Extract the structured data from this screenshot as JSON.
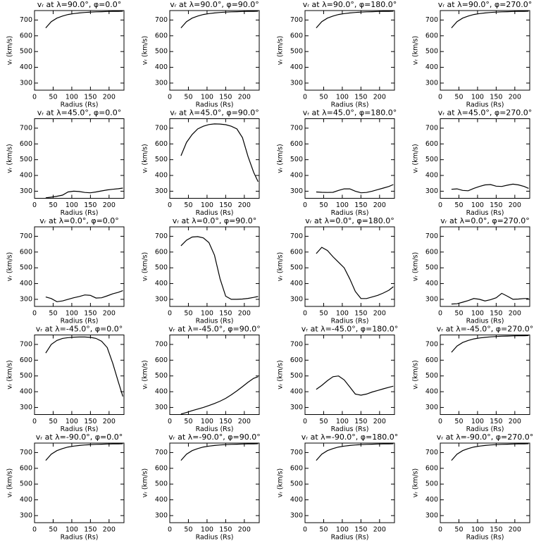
{
  "chart_data": [
    {
      "type": "line",
      "title": "vᵣ at λ=90.0°, φ=0.0°",
      "xlabel": "Radius (Rs)",
      "ylabel": "vᵣ (km/s)",
      "x": [
        30,
        45,
        60,
        75,
        90,
        105,
        120,
        135,
        150,
        165,
        180,
        195,
        210,
        225,
        237
      ],
      "values": [
        650,
        690,
        712,
        725,
        735,
        741,
        745,
        748,
        750,
        752,
        753,
        754,
        755,
        755,
        756
      ],
      "color": "#000000",
      "xlim": [
        0,
        240
      ],
      "ylim": [
        255,
        760
      ],
      "xticks": [
        0,
        50,
        100,
        150,
        200
      ],
      "yticks": [
        300,
        400,
        500,
        600,
        700
      ]
    },
    {
      "type": "line",
      "title": "vᵣ at λ=90.0°, φ=90.0°",
      "xlabel": "Radius (Rs)",
      "ylabel": "vᵣ (km/s)",
      "x": [
        30,
        45,
        60,
        75,
        90,
        105,
        120,
        135,
        150,
        165,
        180,
        195,
        210,
        225,
        237
      ],
      "values": [
        650,
        690,
        712,
        725,
        735,
        741,
        745,
        748,
        750,
        752,
        753,
        754,
        755,
        755,
        756
      ],
      "color": "#000000",
      "xlim": [
        0,
        240
      ],
      "ylim": [
        255,
        760
      ],
      "xticks": [
        0,
        50,
        100,
        150,
        200
      ],
      "yticks": [
        300,
        400,
        500,
        600,
        700
      ]
    },
    {
      "type": "line",
      "title": "vᵣ at λ=90.0°, φ=180.0°",
      "xlabel": "Radius (Rs)",
      "ylabel": "vᵣ (km/s)",
      "x": [
        30,
        45,
        60,
        75,
        90,
        105,
        120,
        135,
        150,
        165,
        180,
        195,
        210,
        225,
        237
      ],
      "values": [
        650,
        690,
        712,
        725,
        735,
        741,
        745,
        748,
        750,
        752,
        753,
        754,
        755,
        755,
        756
      ],
      "color": "#000000",
      "xlim": [
        0,
        240
      ],
      "ylim": [
        255,
        760
      ],
      "xticks": [
        0,
        50,
        100,
        150,
        200
      ],
      "yticks": [
        300,
        400,
        500,
        600,
        700
      ]
    },
    {
      "type": "line",
      "title": "vᵣ at λ=90.0°, φ=270.0°",
      "xlabel": "Radius (Rs)",
      "ylabel": "vᵣ (km/s)",
      "x": [
        30,
        45,
        60,
        75,
        90,
        105,
        120,
        135,
        150,
        165,
        180,
        195,
        210,
        225,
        237
      ],
      "values": [
        650,
        690,
        712,
        725,
        735,
        741,
        745,
        748,
        750,
        752,
        753,
        754,
        755,
        755,
        756
      ],
      "color": "#000000",
      "xlim": [
        0,
        240
      ],
      "ylim": [
        255,
        760
      ],
      "xticks": [
        0,
        50,
        100,
        150,
        200
      ],
      "yticks": [
        300,
        400,
        500,
        600,
        700
      ]
    },
    {
      "type": "line",
      "title": "vᵣ at λ=45.0°, φ=0.0°",
      "xlabel": "Radius (Rs)",
      "ylabel": "vᵣ (km/s)",
      "x": [
        30,
        45,
        60,
        75,
        90,
        105,
        120,
        135,
        150,
        165,
        180,
        195,
        210,
        225,
        237
      ],
      "values": [
        258,
        262,
        268,
        275,
        295,
        300,
        298,
        292,
        290,
        295,
        302,
        308,
        312,
        316,
        320
      ],
      "color": "#000000",
      "xlim": [
        0,
        240
      ],
      "ylim": [
        255,
        760
      ],
      "xticks": [
        0,
        50,
        100,
        150,
        200
      ],
      "yticks": [
        300,
        400,
        500,
        600,
        700
      ]
    },
    {
      "type": "line",
      "title": "vᵣ at λ=45.0°, φ=90.0°",
      "xlabel": "Radius (Rs)",
      "ylabel": "vᵣ (km/s)",
      "x": [
        30,
        45,
        60,
        75,
        90,
        105,
        120,
        135,
        150,
        165,
        180,
        195,
        210,
        225,
        237
      ],
      "values": [
        525,
        610,
        660,
        695,
        712,
        723,
        727,
        726,
        722,
        712,
        695,
        640,
        520,
        420,
        360
      ],
      "color": "#000000",
      "xlim": [
        0,
        240
      ],
      "ylim": [
        255,
        760
      ],
      "xticks": [
        0,
        50,
        100,
        150,
        200
      ],
      "yticks": [
        300,
        400,
        500,
        600,
        700
      ]
    },
    {
      "type": "line",
      "title": "vᵣ at λ=45.0°, φ=180.0°",
      "xlabel": "Radius (Rs)",
      "ylabel": "vᵣ (km/s)",
      "x": [
        30,
        45,
        60,
        75,
        90,
        105,
        120,
        135,
        150,
        165,
        180,
        195,
        210,
        225,
        237
      ],
      "values": [
        295,
        293,
        292,
        293,
        305,
        315,
        315,
        300,
        290,
        292,
        300,
        310,
        320,
        330,
        342
      ],
      "color": "#000000",
      "xlim": [
        0,
        240
      ],
      "ylim": [
        255,
        760
      ],
      "xticks": [
        0,
        50,
        100,
        150,
        200
      ],
      "yticks": [
        300,
        400,
        500,
        600,
        700
      ]
    },
    {
      "type": "line",
      "title": "vᵣ at λ=45.0°, φ=270.0°",
      "xlabel": "Radius (Rs)",
      "ylabel": "vᵣ (km/s)",
      "x": [
        30,
        45,
        60,
        75,
        90,
        105,
        120,
        135,
        150,
        165,
        180,
        195,
        210,
        225,
        237
      ],
      "values": [
        312,
        315,
        305,
        303,
        318,
        330,
        340,
        342,
        332,
        330,
        338,
        345,
        340,
        330,
        318
      ],
      "color": "#000000",
      "xlim": [
        0,
        240
      ],
      "ylim": [
        255,
        760
      ],
      "xticks": [
        0,
        50,
        100,
        150,
        200
      ],
      "yticks": [
        300,
        400,
        500,
        600,
        700
      ]
    },
    {
      "type": "line",
      "title": "vᵣ at λ=0.0°, φ=0.0°",
      "xlabel": "Radius (Rs)",
      "ylabel": "vᵣ (km/s)",
      "x": [
        30,
        45,
        60,
        75,
        90,
        105,
        120,
        135,
        150,
        165,
        180,
        195,
        210,
        225,
        237
      ],
      "values": [
        315,
        305,
        285,
        290,
        300,
        310,
        318,
        328,
        325,
        308,
        310,
        322,
        335,
        345,
        355
      ],
      "color": "#000000",
      "xlim": [
        0,
        240
      ],
      "ylim": [
        255,
        760
      ],
      "xticks": [
        0,
        50,
        100,
        150,
        200
      ],
      "yticks": [
        300,
        400,
        500,
        600,
        700
      ]
    },
    {
      "type": "line",
      "title": "vᵣ at λ=0.0°, φ=90.0°",
      "xlabel": "Radius (Rs)",
      "ylabel": "vᵣ (km/s)",
      "x": [
        30,
        45,
        60,
        75,
        90,
        105,
        120,
        135,
        150,
        165,
        180,
        195,
        210,
        225,
        237
      ],
      "values": [
        640,
        675,
        695,
        698,
        690,
        660,
        580,
        430,
        320,
        300,
        300,
        302,
        306,
        312,
        318
      ],
      "color": "#000000",
      "xlim": [
        0,
        240
      ],
      "ylim": [
        255,
        760
      ],
      "xticks": [
        0,
        50,
        100,
        150,
        200
      ],
      "yticks": [
        300,
        400,
        500,
        600,
        700
      ]
    },
    {
      "type": "line",
      "title": "vᵣ at λ=0.0°, φ=180.0°",
      "xlabel": "Radius (Rs)",
      "ylabel": "vᵣ (km/s)",
      "x": [
        30,
        45,
        60,
        75,
        90,
        105,
        120,
        135,
        150,
        165,
        180,
        195,
        210,
        225,
        237
      ],
      "values": [
        590,
        630,
        610,
        570,
        535,
        500,
        430,
        350,
        305,
        305,
        315,
        325,
        340,
        358,
        380
      ],
      "color": "#000000",
      "xlim": [
        0,
        240
      ],
      "ylim": [
        255,
        760
      ],
      "xticks": [
        0,
        50,
        100,
        150,
        200
      ],
      "yticks": [
        300,
        400,
        500,
        600,
        700
      ]
    },
    {
      "type": "line",
      "title": "vᵣ at λ=0.0°, φ=270.0°",
      "xlabel": "Radius (Rs)",
      "ylabel": "vᵣ (km/s)",
      "x": [
        30,
        45,
        60,
        75,
        90,
        105,
        120,
        135,
        150,
        165,
        180,
        195,
        210,
        225,
        237
      ],
      "values": [
        270,
        272,
        282,
        292,
        305,
        300,
        290,
        298,
        310,
        338,
        320,
        300,
        302,
        305,
        305
      ],
      "color": "#000000",
      "xlim": [
        0,
        240
      ],
      "ylim": [
        255,
        760
      ],
      "xticks": [
        0,
        50,
        100,
        150,
        200
      ],
      "yticks": [
        300,
        400,
        500,
        600,
        700
      ]
    },
    {
      "type": "line",
      "title": "vᵣ at λ=-45.0°, φ=0.0°",
      "xlabel": "Radius (Rs)",
      "ylabel": "vᵣ (km/s)",
      "x": [
        30,
        45,
        60,
        75,
        90,
        105,
        120,
        135,
        150,
        165,
        180,
        195,
        210,
        225,
        237
      ],
      "values": [
        645,
        700,
        725,
        738,
        743,
        746,
        747,
        747,
        745,
        738,
        720,
        680,
        580,
        460,
        370
      ],
      "color": "#000000",
      "xlim": [
        0,
        240
      ],
      "ylim": [
        255,
        760
      ],
      "xticks": [
        0,
        50,
        100,
        150,
        200
      ],
      "yticks": [
        300,
        400,
        500,
        600,
        700
      ]
    },
    {
      "type": "line",
      "title": "vᵣ at λ=-45.0°, φ=90.0°",
      "xlabel": "Radius (Rs)",
      "ylabel": "vᵣ (km/s)",
      "x": [
        30,
        45,
        60,
        75,
        90,
        105,
        120,
        135,
        150,
        165,
        180,
        195,
        210,
        225,
        237
      ],
      "values": [
        258,
        268,
        280,
        290,
        300,
        312,
        325,
        340,
        358,
        380,
        405,
        432,
        460,
        485,
        495
      ],
      "color": "#000000",
      "xlim": [
        0,
        240
      ],
      "ylim": [
        255,
        760
      ],
      "xticks": [
        0,
        50,
        100,
        150,
        200
      ],
      "yticks": [
        300,
        400,
        500,
        600,
        700
      ]
    },
    {
      "type": "line",
      "title": "vᵣ at λ=-45.0°, φ=180.0°",
      "xlabel": "Radius (Rs)",
      "ylabel": "vᵣ (km/s)",
      "x": [
        30,
        45,
        60,
        75,
        90,
        105,
        120,
        135,
        150,
        165,
        180,
        195,
        210,
        225,
        237
      ],
      "values": [
        415,
        440,
        470,
        495,
        500,
        475,
        430,
        385,
        378,
        385,
        398,
        408,
        418,
        428,
        435
      ],
      "color": "#000000",
      "xlim": [
        0,
        240
      ],
      "ylim": [
        255,
        760
      ],
      "xticks": [
        0,
        50,
        100,
        150,
        200
      ],
      "yticks": [
        300,
        400,
        500,
        600,
        700
      ]
    },
    {
      "type": "line",
      "title": "vᵣ at λ=-45.0°, φ=270.0°",
      "xlabel": "Radius (Rs)",
      "ylabel": "vᵣ (km/s)",
      "x": [
        30,
        45,
        60,
        75,
        90,
        105,
        120,
        135,
        150,
        165,
        180,
        195,
        210,
        225,
        237
      ],
      "values": [
        650,
        690,
        712,
        725,
        735,
        741,
        745,
        748,
        750,
        752,
        753,
        754,
        755,
        755,
        756
      ],
      "color": "#000000",
      "xlim": [
        0,
        240
      ],
      "ylim": [
        255,
        760
      ],
      "xticks": [
        0,
        50,
        100,
        150,
        200
      ],
      "yticks": [
        300,
        400,
        500,
        600,
        700
      ]
    },
    {
      "type": "line",
      "title": "vᵣ at λ=-90.0°, φ=0.0°",
      "xlabel": "Radius (Rs)",
      "ylabel": "vᵣ (km/s)",
      "x": [
        30,
        45,
        60,
        75,
        90,
        105,
        120,
        135,
        150,
        165,
        180,
        195,
        210,
        225,
        237
      ],
      "values": [
        650,
        690,
        712,
        725,
        735,
        741,
        745,
        748,
        750,
        752,
        753,
        754,
        755,
        755,
        756
      ],
      "color": "#000000",
      "xlim": [
        0,
        240
      ],
      "ylim": [
        255,
        760
      ],
      "xticks": [
        0,
        50,
        100,
        150,
        200
      ],
      "yticks": [
        300,
        400,
        500,
        600,
        700
      ]
    },
    {
      "type": "line",
      "title": "vᵣ at λ=-90.0°, φ=90.0°",
      "xlabel": "Radius (Rs)",
      "ylabel": "vᵣ (km/s)",
      "x": [
        30,
        45,
        60,
        75,
        90,
        105,
        120,
        135,
        150,
        165,
        180,
        195,
        210,
        225,
        237
      ],
      "values": [
        650,
        690,
        712,
        725,
        735,
        741,
        745,
        748,
        750,
        752,
        753,
        754,
        755,
        755,
        756
      ],
      "color": "#000000",
      "xlim": [
        0,
        240
      ],
      "ylim": [
        255,
        760
      ],
      "xticks": [
        0,
        50,
        100,
        150,
        200
      ],
      "yticks": [
        300,
        400,
        500,
        600,
        700
      ]
    },
    {
      "type": "line",
      "title": "vᵣ at λ=-90.0°, φ=180.0°",
      "xlabel": "Radius (Rs)",
      "ylabel": "vᵣ (km/s)",
      "x": [
        30,
        45,
        60,
        75,
        90,
        105,
        120,
        135,
        150,
        165,
        180,
        195,
        210,
        225,
        237
      ],
      "values": [
        650,
        690,
        712,
        725,
        735,
        741,
        745,
        748,
        750,
        752,
        753,
        754,
        755,
        755,
        756
      ],
      "color": "#000000",
      "xlim": [
        0,
        240
      ],
      "ylim": [
        255,
        760
      ],
      "xticks": [
        0,
        50,
        100,
        150,
        200
      ],
      "yticks": [
        300,
        400,
        500,
        600,
        700
      ]
    },
    {
      "type": "line",
      "title": "vᵣ at λ=-90.0°, φ=270.0°",
      "xlabel": "Radius (Rs)",
      "ylabel": "vᵣ (km/s)",
      "x": [
        30,
        45,
        60,
        75,
        90,
        105,
        120,
        135,
        150,
        165,
        180,
        195,
        210,
        225,
        237
      ],
      "values": [
        650,
        690,
        712,
        725,
        735,
        741,
        745,
        748,
        750,
        752,
        753,
        754,
        755,
        755,
        756
      ],
      "color": "#000000",
      "xlim": [
        0,
        240
      ],
      "ylim": [
        255,
        760
      ],
      "xticks": [
        0,
        50,
        100,
        150,
        200
      ],
      "yticks": [
        300,
        400,
        500,
        600,
        700
      ]
    }
  ]
}
